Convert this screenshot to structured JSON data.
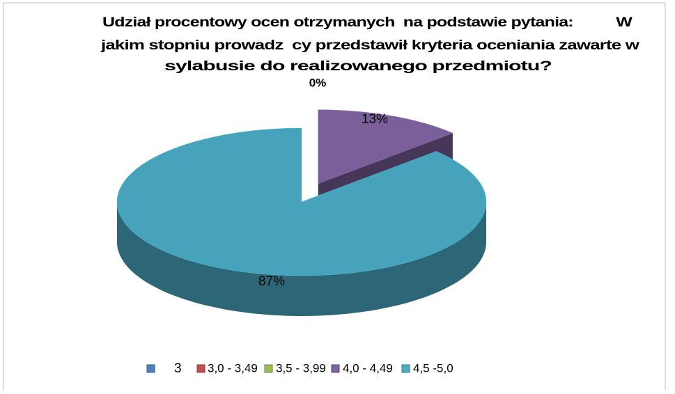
{
  "chart_data": {
    "type": "pie3d",
    "title": [
      "Udział procentowy ocen otrzymanych  na podstawie pytania:          W",
      "jakim stopniu prowadz  cy przedstawił kryteria oceniania zawarte w",
      "sylabusie do realizowanego przedmiotu?"
    ],
    "categories": [
      "3",
      "3,0 - 3,49",
      "3,5 - 3,99",
      "4,0 - 4,49",
      "4,5 -5,0"
    ],
    "values": [
      0,
      0,
      0,
      13,
      87
    ],
    "value_labels": [
      "0%",
      null,
      null,
      "13%",
      "87%"
    ],
    "colors": [
      "#4f81bd",
      "#c0504d",
      "#9bbb59",
      "#8064a2",
      "#4bacc6"
    ],
    "legend": "bottom"
  }
}
